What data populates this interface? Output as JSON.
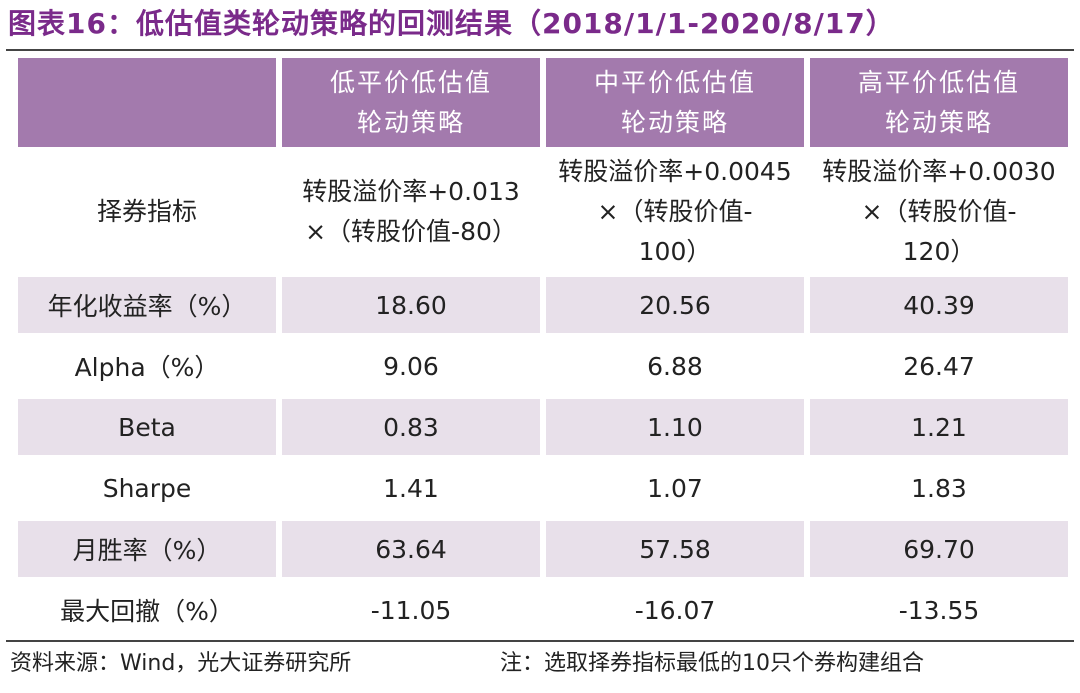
{
  "title": "图表16：低估值类轮动策略的回测结果（2018/1/1-2020/8/17）",
  "columns": [
    {
      "line1": "低平价低估值",
      "line2": "轮动策略"
    },
    {
      "line1": "中平价低估值",
      "line2": "轮动策略"
    },
    {
      "line1": "高平价低估值",
      "line2": "轮动策略"
    }
  ],
  "indicator": {
    "label": "择券指标",
    "values": [
      {
        "line1": "转股溢价率+0.013",
        "line2": "×（转股价值-80）",
        "line3": ""
      },
      {
        "line1": "转股溢价率+0.0045",
        "line2": "×（转股价值-",
        "line3": "100）"
      },
      {
        "line1": "转股溢价率+0.0030",
        "line2": "×（转股价值-",
        "line3": "120）"
      }
    ]
  },
  "rows": [
    {
      "label": "年化收益率（%）",
      "values": [
        "18.60",
        "20.56",
        "40.39"
      ]
    },
    {
      "label": "Alpha（%）",
      "values": [
        "9.06",
        "6.88",
        "26.47"
      ]
    },
    {
      "label": "Beta",
      "values": [
        "0.83",
        "1.10",
        "1.21"
      ]
    },
    {
      "label": "Sharpe",
      "values": [
        "1.41",
        "1.07",
        "1.83"
      ]
    },
    {
      "label": "月胜率（%）",
      "values": [
        "63.64",
        "57.58",
        "69.70"
      ]
    },
    {
      "label": "最大回撤（%）",
      "values": [
        "-11.05",
        "-16.07",
        "-13.55"
      ]
    }
  ],
  "footer": {
    "source": "资料来源：Wind，光大证券研究所",
    "note": "注：选取择券指标最低的10只个券构建组合"
  },
  "colors": {
    "title": "#7a2a8a",
    "header_bg": "#a37aad",
    "shade_bg": "#e8e0ea"
  }
}
